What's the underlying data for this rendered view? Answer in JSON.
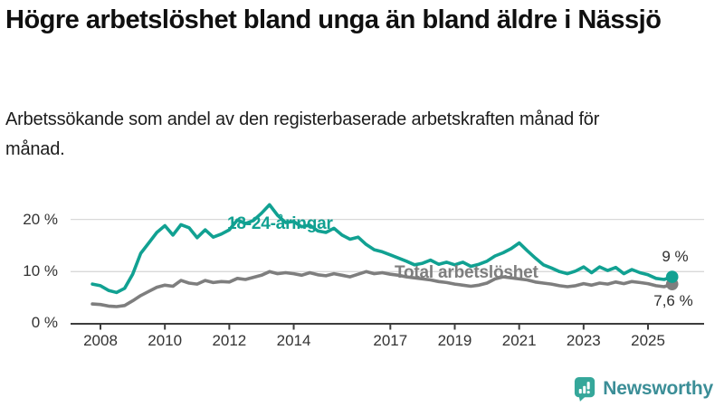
{
  "header": {
    "title": "Högre arbetslöshet bland unga än bland äldre i Nässjö",
    "subtitle": "Arbetssökande som andel av den registerbaserade arbetskraften månad för månad."
  },
  "chart_data": {
    "type": "line",
    "title": "Högre arbetslöshet bland unga än bland äldre i Nässjö",
    "subtitle": "Arbetssökande som andel av den registerbaserade arbetskraften månad för månad.",
    "unit": "%",
    "grid": "horizontal-only",
    "legend_position": "inline-labels",
    "x_start_year": 2007.75,
    "x_step_years": 0.25,
    "x_end_year": 2025.75,
    "x_tick_years": [
      2008,
      2010,
      2012,
      2014,
      2017,
      2019,
      2021,
      2023,
      2025
    ],
    "x_tick_labels": [
      "2008",
      "2010",
      "2012",
      "2014",
      "2017",
      "2019",
      "2021",
      "2023",
      "2025"
    ],
    "y_ticks": [
      {
        "value": 0,
        "label": "0 %"
      },
      {
        "value": 10,
        "label": "10 %"
      },
      {
        "value": 20,
        "label": "20 %"
      }
    ],
    "ylim": [
      0,
      24
    ],
    "series": [
      {
        "name": "18-24-åringar",
        "color": "#11a192",
        "end_label": "9 %",
        "end_value": 9.0,
        "values": [
          7.6,
          7.3,
          6.4,
          6.0,
          6.8,
          9.5,
          13.5,
          15.5,
          17.5,
          18.8,
          17.0,
          19.0,
          18.4,
          16.5,
          18.0,
          16.6,
          17.2,
          18.0,
          19.9,
          19.2,
          19.8,
          21.2,
          22.8,
          20.8,
          19.4,
          19.6,
          18.6,
          18.9,
          17.8,
          17.5,
          18.3,
          17.0,
          16.2,
          16.6,
          15.2,
          14.2,
          13.8,
          13.2,
          12.6,
          12.0,
          11.3,
          11.6,
          12.2,
          11.4,
          11.8,
          11.3,
          11.8,
          11.0,
          11.4,
          12.0,
          13.0,
          13.6,
          14.4,
          15.5,
          14.0,
          12.6,
          11.3,
          10.7,
          10.0,
          9.6,
          10.1,
          10.9,
          9.8,
          10.9,
          10.2,
          10.8,
          9.6,
          10.4,
          9.8,
          9.4,
          8.7,
          8.5,
          9.0
        ]
      },
      {
        "name": "Total arbetslöshet",
        "color": "#7e7e7e",
        "end_label": "7,6 %",
        "end_value": 7.6,
        "values": [
          3.8,
          3.7,
          3.4,
          3.3,
          3.5,
          4.4,
          5.4,
          6.2,
          7.0,
          7.4,
          7.2,
          8.3,
          7.8,
          7.6,
          8.3,
          7.9,
          8.1,
          8.0,
          8.7,
          8.5,
          8.9,
          9.3,
          10.0,
          9.6,
          9.8,
          9.6,
          9.3,
          9.8,
          9.4,
          9.2,
          9.6,
          9.3,
          9.0,
          9.5,
          10.0,
          9.6,
          9.8,
          9.5,
          9.3,
          9.0,
          8.8,
          8.6,
          8.4,
          8.1,
          7.9,
          7.6,
          7.4,
          7.2,
          7.4,
          7.8,
          8.6,
          9.0,
          8.8,
          8.6,
          8.4,
          8.0,
          7.8,
          7.6,
          7.3,
          7.1,
          7.3,
          7.7,
          7.4,
          7.8,
          7.6,
          8.0,
          7.7,
          8.1,
          7.9,
          7.7,
          7.3,
          7.1,
          7.6
        ]
      }
    ],
    "style": {
      "gridline_color": "#d9d9d9",
      "axis_color": "#3d3d3d",
      "tick_label_color": "#333333"
    }
  },
  "footer": {
    "brand": "Newsworthy",
    "brand_color": "#3b8e97",
    "icon": "bar-chart-speech-bubble-icon",
    "icon_color": "#35a79a"
  }
}
